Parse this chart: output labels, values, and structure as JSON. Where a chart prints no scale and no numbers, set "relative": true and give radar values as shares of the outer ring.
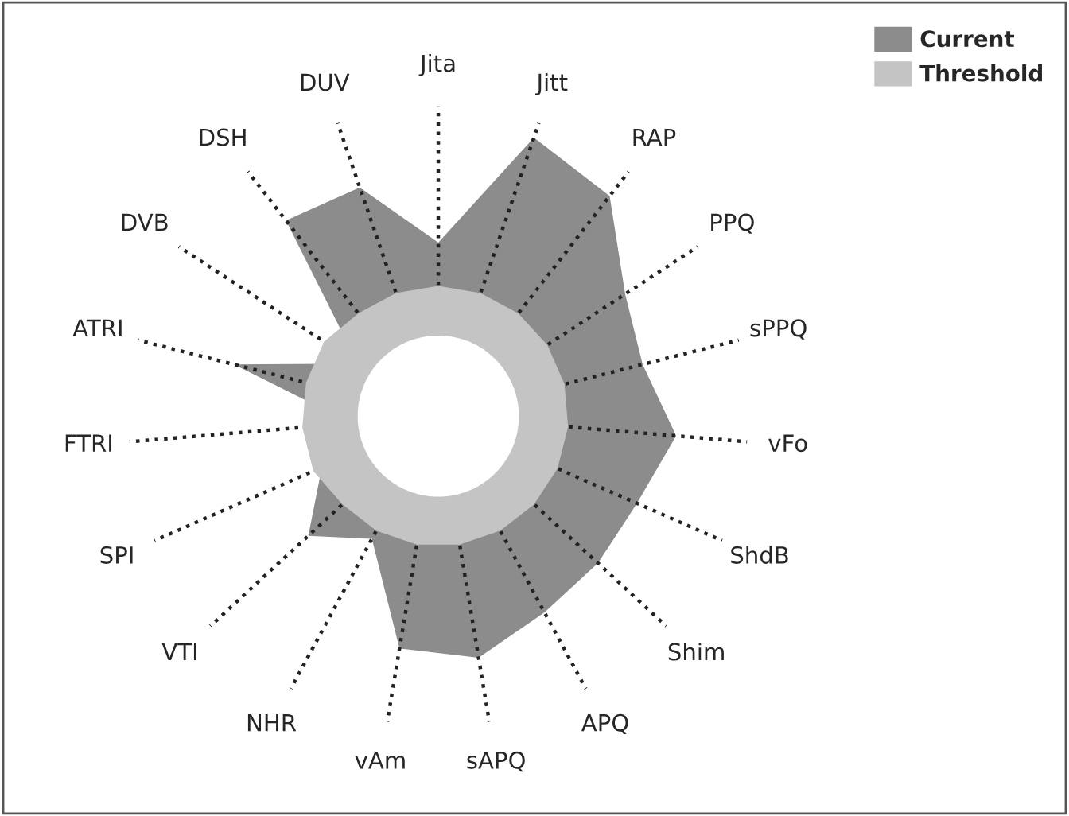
{
  "chart_data": {
    "type": "radar",
    "relative": true,
    "legend": "top right",
    "grid": "x",
    "line_style": "dotted",
    "categories": [
      "Jita",
      "Jitt",
      "RAP",
      "PPQ",
      "sPPQ",
      "vFo",
      "ShdB",
      "Shim",
      "APQ",
      "sAPQ",
      "vAm",
      "NHR",
      "VTI",
      "SPI",
      "FTRI",
      "ATRI",
      "DVB",
      "DSH",
      "DUV"
    ],
    "series": [
      {
        "name": "Current",
        "color": "#8c8c8c",
        "values": [
          0.56,
          0.95,
          0.9,
          0.72,
          0.68,
          0.77,
          0.7,
          0.7,
          0.72,
          0.79,
          0.76,
          0.45,
          0.57,
          0.41,
          0.28,
          0.68,
          0.31,
          0.8,
          0.78
        ]
      },
      {
        "name": "Threshold",
        "color": "#c4c4c4",
        "values": [
          0.42,
          0.42,
          0.42,
          0.42,
          0.42,
          0.42,
          0.42,
          0.42,
          0.42,
          0.42,
          0.42,
          0.42,
          0.42,
          0.44,
          0.44,
          0.44,
          0.44,
          0.42,
          0.42
        ]
      }
    ]
  }
}
